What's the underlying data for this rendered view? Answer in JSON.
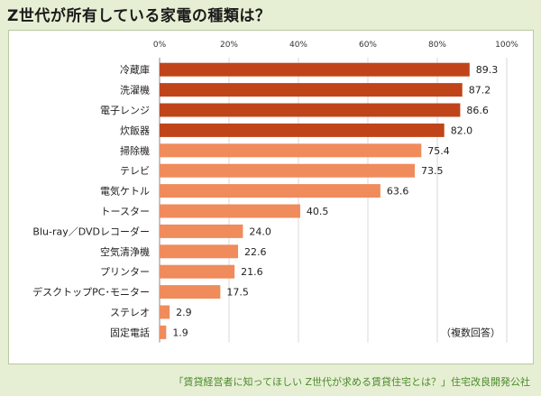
{
  "title": "Z世代が所有している家電の種類は？",
  "footer": "「賃貸経営者に知ってほしい Z世代が求める賃貸住宅とは？」住宅改良開発公社",
  "colors": {
    "dark_bar": "#c0441a",
    "light_bar": "#f08b5c",
    "grid": "#d9d9d9",
    "axis": "#888888"
  },
  "chart_data": {
    "type": "bar",
    "orientation": "horizontal",
    "title": "Z世代が所有している家電の種類は？",
    "categories": [
      "冷蔵庫",
      "洗濯機",
      "電子レンジ",
      "炊飯器",
      "掃除機",
      "テレビ",
      "電気ケトル",
      "トースター",
      "Blu-ray／DVDレコーダー",
      "空気清浄機",
      "プリンター",
      "デスクトップPC･モニター",
      "ステレオ",
      "固定電話"
    ],
    "values": [
      89.3,
      87.2,
      86.6,
      82.0,
      75.4,
      73.5,
      63.6,
      40.5,
      24.0,
      22.6,
      21.6,
      17.5,
      2.9,
      1.9
    ],
    "value_labels": [
      "89.3",
      "87.2",
      "86.6",
      "82.0",
      "75.4",
      "73.5",
      "63.6",
      "40.5",
      "24.0",
      "22.6",
      "21.6",
      "17.5",
      "2.9",
      "1.9"
    ],
    "highlight_count": 4,
    "xlim": [
      0,
      100
    ],
    "xticks": [
      "0%",
      "20%",
      "40%",
      "60%",
      "80%",
      "100%"
    ],
    "note": "（複数回答）",
    "grid": true
  }
}
